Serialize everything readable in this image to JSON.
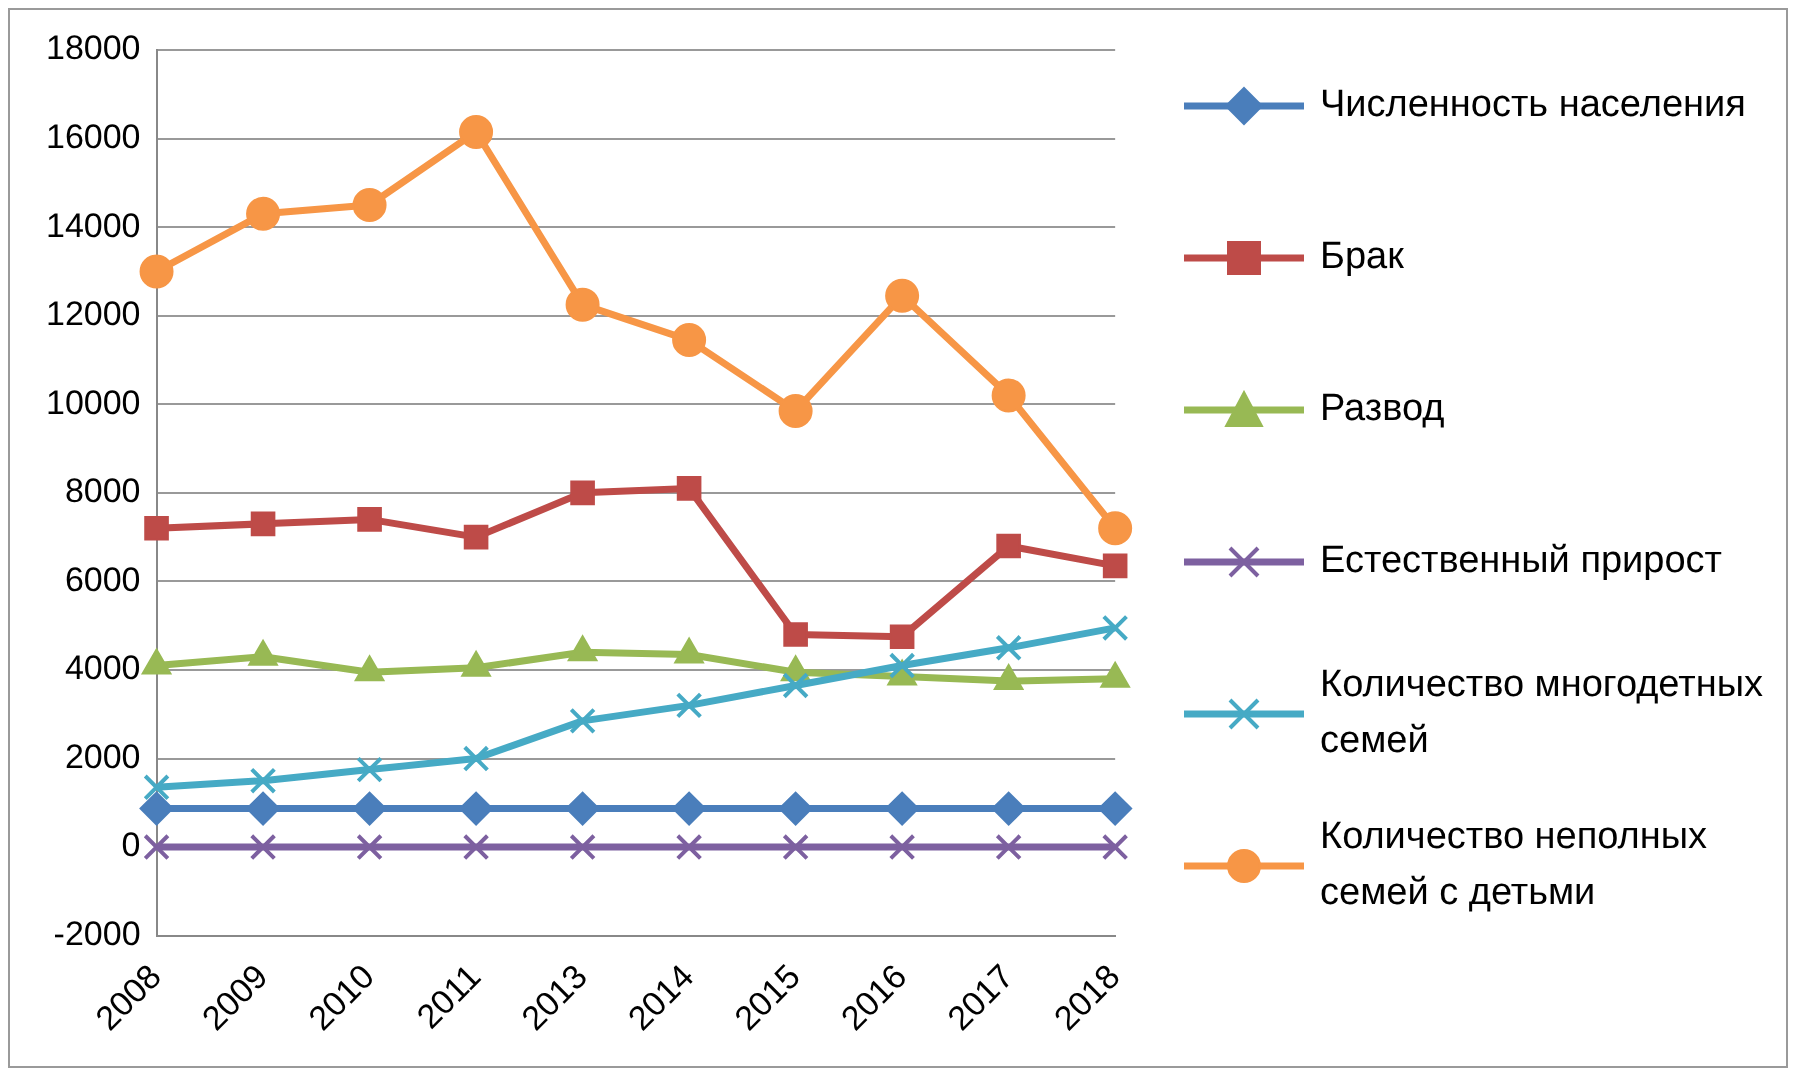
{
  "chart_data": {
    "type": "line",
    "categories": [
      "2008",
      "2009",
      "2010",
      "2011",
      "2013",
      "2014",
      "2015",
      "2016",
      "2017",
      "2018"
    ],
    "series": [
      {
        "name": "Численность населения",
        "color": "#4a7ebb",
        "marker": "diamond",
        "values": [
          870,
          870,
          870,
          870,
          870,
          870,
          870,
          870,
          870,
          870
        ]
      },
      {
        "name": "Брак",
        "color": "#be4b48",
        "marker": "square",
        "values": [
          7200,
          7300,
          7400,
          7000,
          8000,
          8100,
          4800,
          4750,
          6800,
          6350
        ]
      },
      {
        "name": "Развод",
        "color": "#98b954",
        "marker": "triangle",
        "values": [
          4100,
          4300,
          3950,
          4050,
          4400,
          4350,
          3950,
          3850,
          3750,
          3800
        ]
      },
      {
        "name": "Естественный прирост",
        "color": "#7d60a0",
        "marker": "cross",
        "values": [
          0,
          0,
          0,
          0,
          0,
          0,
          0,
          0,
          0,
          0
        ]
      },
      {
        "name": "Количество многодетных семей",
        "color": "#46aac5",
        "marker": "cross",
        "values": [
          1350,
          1500,
          1750,
          2000,
          2850,
          3200,
          3650,
          4100,
          4500,
          4950
        ]
      },
      {
        "name": "Количество неполных семей с детьми",
        "color": "#f79646",
        "marker": "circle",
        "values": [
          13000,
          14300,
          14500,
          16150,
          12250,
          11450,
          9850,
          12450,
          10200,
          7200
        ]
      }
    ],
    "ylim": [
      -2000,
      18000
    ],
    "yticks": [
      -2000,
      0,
      2000,
      4000,
      6000,
      8000,
      10000,
      12000,
      14000,
      16000,
      18000
    ],
    "grid": "y",
    "legend": "right",
    "line_style": "solid"
  }
}
